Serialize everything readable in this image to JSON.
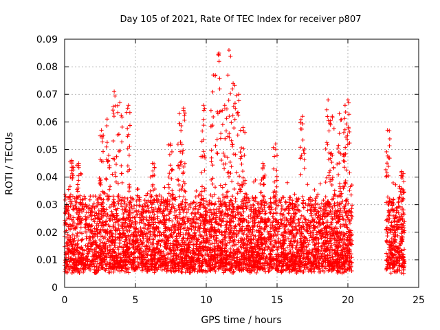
{
  "chart_data": {
    "type": "scatter",
    "title": "Day 105 of 2021, Rate Of TEC Index for receiver p807",
    "xlabel": "GPS time / hours",
    "ylabel": "ROTI / TECUs",
    "xlim": [
      0,
      25
    ],
    "ylim": [
      0,
      0.09
    ],
    "xticks": [
      0,
      5,
      10,
      15,
      20,
      25
    ],
    "xtick_labels": [
      "0",
      "5",
      "10",
      "15",
      "20",
      "25"
    ],
    "yticks": [
      0,
      0.01,
      0.02,
      0.03,
      0.04,
      0.05,
      0.06,
      0.07,
      0.08,
      0.09
    ],
    "ytick_labels": [
      "0",
      "0.01",
      "0.02",
      "0.03",
      "0.04",
      "0.05",
      "0.06",
      "0.07",
      "0.08",
      "0.09"
    ],
    "grid": true,
    "marker": "plus",
    "color": "#ff0000",
    "coverage_hours": [
      [
        0.0,
        20.3
      ],
      [
        22.7,
        24.0
      ]
    ],
    "typical_range": [
      0.005,
      0.03
    ],
    "peaks": [
      {
        "x": 0.5,
        "y": 0.046
      },
      {
        "x": 1.0,
        "y": 0.045
      },
      {
        "x": 2.6,
        "y": 0.057
      },
      {
        "x": 3.0,
        "y": 0.061
      },
      {
        "x": 3.5,
        "y": 0.071
      },
      {
        "x": 3.9,
        "y": 0.067
      },
      {
        "x": 4.5,
        "y": 0.066
      },
      {
        "x": 6.2,
        "y": 0.045
      },
      {
        "x": 7.5,
        "y": 0.052
      },
      {
        "x": 8.1,
        "y": 0.063
      },
      {
        "x": 8.4,
        "y": 0.065
      },
      {
        "x": 9.8,
        "y": 0.066
      },
      {
        "x": 10.5,
        "y": 0.077
      },
      {
        "x": 10.9,
        "y": 0.085
      },
      {
        "x": 11.3,
        "y": 0.066
      },
      {
        "x": 11.6,
        "y": 0.086
      },
      {
        "x": 11.9,
        "y": 0.074
      },
      {
        "x": 12.3,
        "y": 0.07
      },
      {
        "x": 12.6,
        "y": 0.058
      },
      {
        "x": 14.0,
        "y": 0.045
      },
      {
        "x": 14.9,
        "y": 0.052
      },
      {
        "x": 16.8,
        "y": 0.062
      },
      {
        "x": 18.6,
        "y": 0.068
      },
      {
        "x": 18.9,
        "y": 0.062
      },
      {
        "x": 19.4,
        "y": 0.063
      },
      {
        "x": 19.8,
        "y": 0.066
      },
      {
        "x": 20.0,
        "y": 0.068
      },
      {
        "x": 22.8,
        "y": 0.057
      },
      {
        "x": 23.8,
        "y": 0.042
      }
    ]
  }
}
